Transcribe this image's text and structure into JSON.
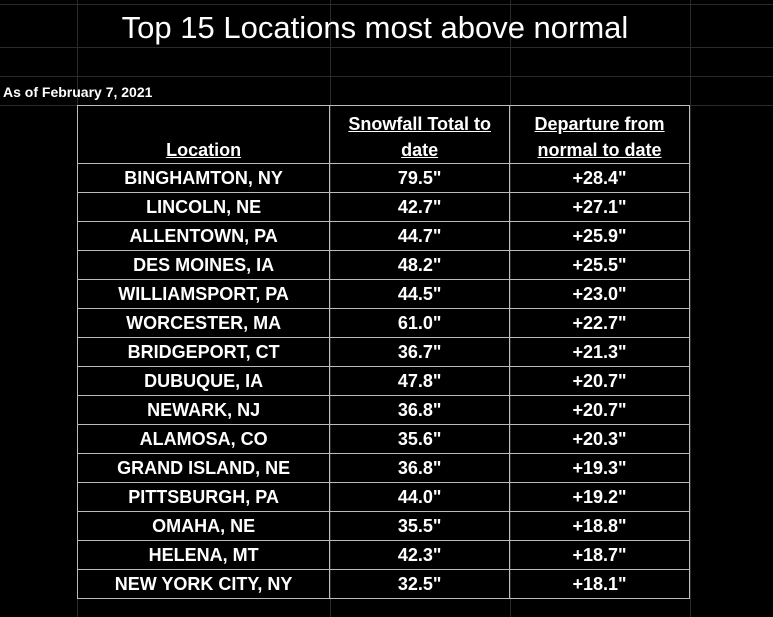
{
  "title": "Top 15 Locations most above normal",
  "subtitle": "As of February 7, 2021",
  "table": {
    "header": [
      "Location",
      "Snowfall Total to date",
      "Departure from normal to date"
    ],
    "rows": [
      [
        "BINGHAMTON, NY",
        "79.5\"",
        "+28.4\""
      ],
      [
        "LINCOLN, NE",
        "42.7\"",
        "+27.1\""
      ],
      [
        "ALLENTOWN, PA",
        "44.7\"",
        "+25.9\""
      ],
      [
        "DES MOINES, IA",
        "48.2\"",
        "+25.5\""
      ],
      [
        "WILLIAMSPORT, PA",
        "44.5\"",
        "+23.0\""
      ],
      [
        "WORCESTER, MA",
        "61.0\"",
        "+22.7\""
      ],
      [
        "BRIDGEPORT, CT",
        "36.7\"",
        "+21.3\""
      ],
      [
        "DUBUQUE, IA",
        "47.8\"",
        "+20.7\""
      ],
      [
        "NEWARK, NJ",
        "36.8\"",
        "+20.7\""
      ],
      [
        "ALAMOSA, CO",
        "35.6\"",
        "+20.3\""
      ],
      [
        "GRAND ISLAND, NE",
        "36.8\"",
        "+19.3\""
      ],
      [
        "PITTSBURGH, PA",
        "44.0\"",
        "+19.2\""
      ],
      [
        "OMAHA, NE",
        "35.5\"",
        "+18.8\""
      ],
      [
        "HELENA, MT",
        "42.3\"",
        "+18.7\""
      ],
      [
        "NEW YORK CITY, NY",
        "32.5\"",
        "+18.1\""
      ]
    ]
  }
}
